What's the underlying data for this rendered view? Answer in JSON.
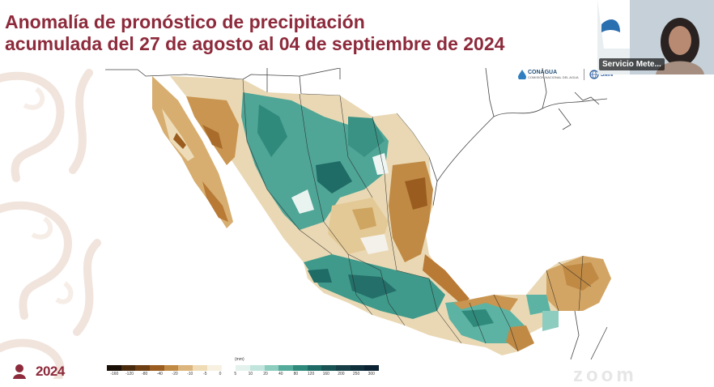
{
  "slide": {
    "title_line1": "Anomalía de pronóstico de precipitación",
    "title_line2": "acumulada del 27 de agosto al 04 de septiembre de 2024"
  },
  "logos": {
    "conagua": "CONAGUA",
    "conagua_sub": "COMISIÓN NACIONAL DEL AGUA",
    "smn": "SMN"
  },
  "legend": {
    "unit": "(mm)",
    "ticks": [
      "-160",
      "-120",
      "-80",
      "-40",
      "-20",
      "-10",
      "-5",
      "0",
      "5",
      "10",
      "20",
      "40",
      "80",
      "120",
      "160",
      "200",
      "250",
      "300"
    ],
    "colors": [
      "#1a0f05",
      "#4a2a0c",
      "#6e3f12",
      "#9a5d1f",
      "#c08a45",
      "#dcb57c",
      "#efdcb6",
      "#f8f1e2",
      "#ffffff",
      "#e4f2ee",
      "#c1e4dc",
      "#8ccdbf",
      "#55ab9b",
      "#2f8a7c",
      "#1f6b66",
      "#195354",
      "#163f47",
      "#10303b",
      "#0b2233"
    ]
  },
  "presenter": {
    "name": "Servicio Mete..."
  },
  "footer": {
    "year": "2024",
    "watermark": "zoom"
  },
  "colors": {
    "title": "#8d2a3b",
    "dry": "#c08a45",
    "wet": "#3a9285"
  }
}
